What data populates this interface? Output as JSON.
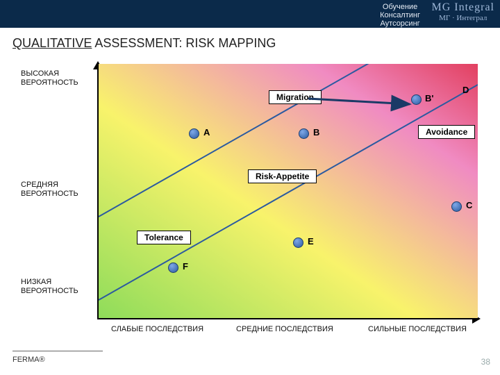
{
  "header": {
    "services": [
      "Обучение",
      "Консалтинг",
      "Аутсорсинг"
    ],
    "logo_top": "МG Integral",
    "logo_bottom": "МГ · Интеграл"
  },
  "title_prefix": "QUALITATIVE",
  "title_rest": " ASSESSMENT: RISK MAPPING",
  "axis": {
    "y_high": "ВЫСОКАЯ ВЕРОЯТНОСТЬ",
    "y_mid": "СРЕДНЯЯ ВЕРОЯТНОСТЬ",
    "y_low": "НИЗКАЯ ВЕРОЯТНОСТЬ",
    "x_low": "СЛАБЫЕ ПОСЛЕДСТВИЯ",
    "x_mid": "СРЕДНИЕ ПОСЛЕДСТВИЯ",
    "x_high": "СИЛЬНЫЕ ПОСЛЕДСТВИЯ"
  },
  "labels": {
    "migration": "Migration",
    "avoidance": "Avoidance",
    "tolerance": "Tolerance",
    "risk_appetite": "Risk-Appetite"
  },
  "points": {
    "A": "A",
    "B": "B",
    "Bprime": "B'",
    "C": "C",
    "D": "D",
    "E": "E",
    "F": "F"
  },
  "gradient": {
    "green": "#8edc5a",
    "yellow": "#f8f36b",
    "pink": "#f08bc2",
    "red": "#e24060"
  },
  "lines": {
    "outer_color": "#2b5aa0",
    "inner_color": "#2b5aa0",
    "width": 2
  },
  "arrow": {
    "color": "#1b3a66",
    "from": [
      302,
      50
    ],
    "to": [
      448,
      58
    ]
  },
  "footnote": "FERMA®",
  "page_number": 38
}
